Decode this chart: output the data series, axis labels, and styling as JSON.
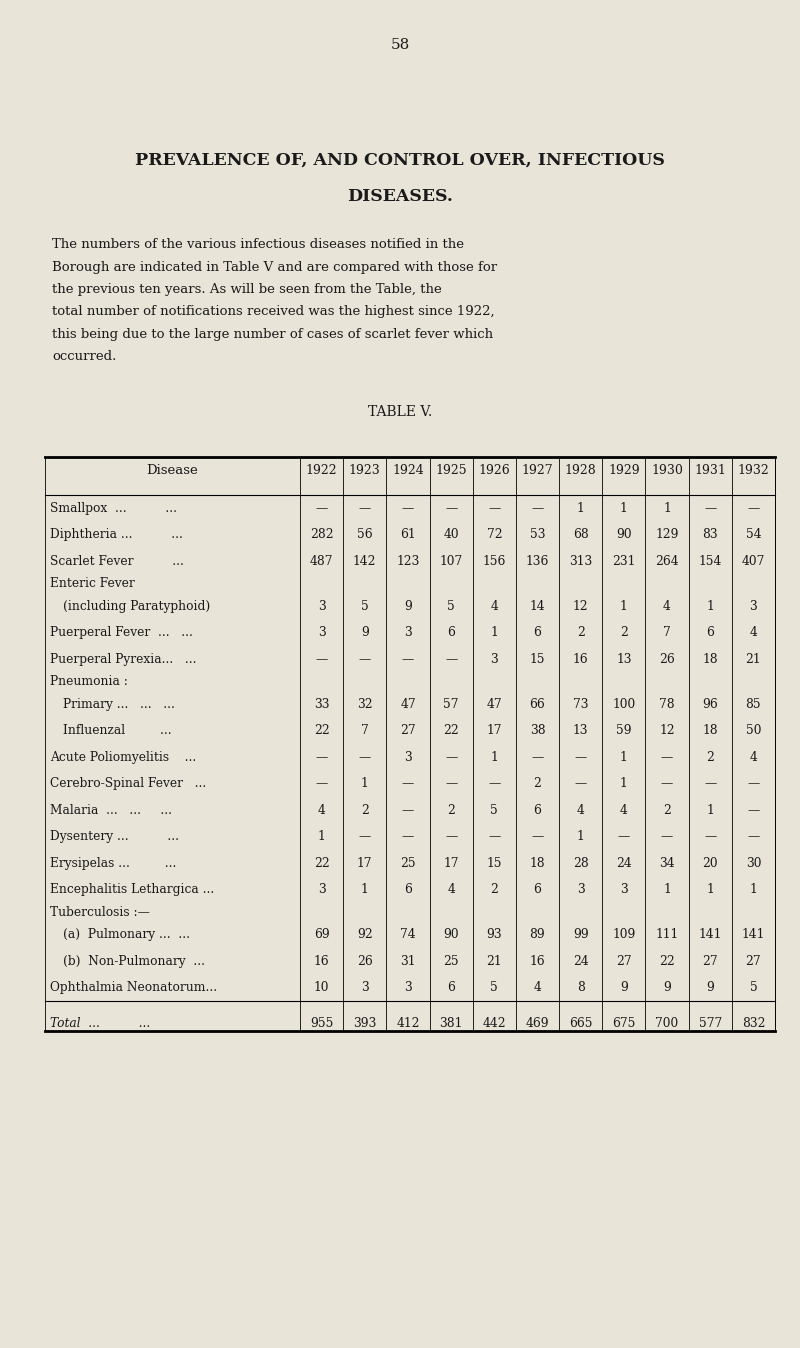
{
  "page_number": "58",
  "title_line1": "PREVALENCE OF, AND CONTROL OVER, INFECTIOUS",
  "title_line2": "DISEASES.",
  "paragraph": "The numbers of the various infectious diseases notified in the Borough are indicated in Table V and are compared with those for the previous ten years. As will be seen from the Table, the total number of notifications received was the highest since 1922, this being due to the large number of cases of scarlet fever which occurred.",
  "table_title": "TABLE V.",
  "background_color": "#e8e4d8",
  "text_color": "#1a1a1a",
  "years": [
    "1922",
    "1923",
    "1924",
    "1925",
    "1926",
    "1927",
    "1928",
    "1929",
    "1930",
    "1931",
    "1932"
  ],
  "diseases": [
    {
      "name": "Smallpox  ...          ...",
      "indent": 0,
      "values": [
        "—",
        "—",
        "—",
        "—",
        "—",
        "—",
        "1",
        "1",
        "1",
        "—",
        "—"
      ]
    },
    {
      "name": "Diphtheria ...          ...",
      "indent": 0,
      "values": [
        "282",
        "56",
        "61",
        "40",
        "72",
        "53",
        "68",
        "90",
        "129",
        "83",
        "54"
      ]
    },
    {
      "name": "Scarlet Fever          ...",
      "indent": 0,
      "values": [
        "487",
        "142",
        "123",
        "107",
        "156",
        "136",
        "313",
        "231",
        "264",
        "154",
        "407"
      ]
    },
    {
      "name": "Enteric Fever",
      "indent": 0,
      "values": [
        "",
        "",
        "",
        "",
        "",
        "",
        "",
        "",
        "",
        "",
        ""
      ]
    },
    {
      "name": "    (including Paratyphoid)",
      "indent": 1,
      "values": [
        "3",
        "5",
        "9",
        "5",
        "4",
        "14",
        "12",
        "1",
        "4",
        "1",
        "3"
      ]
    },
    {
      "name": "Puerperal Fever  ...   ...",
      "indent": 0,
      "values": [
        "3",
        "9",
        "3",
        "6",
        "1",
        "6",
        "2",
        "2",
        "7",
        "6",
        "4"
      ]
    },
    {
      "name": "Puerperal Pyrexia...   ...",
      "indent": 0,
      "values": [
        "—",
        "—",
        "—",
        "—",
        "3",
        "15",
        "16",
        "13",
        "26",
        "18",
        "21"
      ]
    },
    {
      "name": "Pneumonia :",
      "indent": 0,
      "values": [
        "",
        "",
        "",
        "",
        "",
        "",
        "",
        "",
        "",
        "",
        ""
      ]
    },
    {
      "name": "    Primary ...   ...   ...",
      "indent": 1,
      "values": [
        "33",
        "32",
        "47",
        "57",
        "47",
        "66",
        "73",
        "100",
        "78",
        "96",
        "85"
      ]
    },
    {
      "name": "    Influenzal         ...",
      "indent": 1,
      "values": [
        "22",
        "7",
        "27",
        "22",
        "17",
        "38",
        "13",
        "59",
        "12",
        "18",
        "50"
      ]
    },
    {
      "name": "Acute Poliomyelitis    ...",
      "indent": 0,
      "values": [
        "—",
        "—",
        "3",
        "—",
        "1",
        "—",
        "—",
        "1",
        "—",
        "2",
        "4"
      ]
    },
    {
      "name": "Cerebro-Spinal Fever   ...",
      "indent": 0,
      "values": [
        "—",
        "1",
        "—",
        "—",
        "—",
        "2",
        "—",
        "1",
        "—",
        "—",
        "—"
      ]
    },
    {
      "name": "Malaria  ...   ...     ...",
      "indent": 0,
      "values": [
        "4",
        "2",
        "—",
        "2",
        "5",
        "6",
        "4",
        "4",
        "2",
        "1",
        "—"
      ]
    },
    {
      "name": "Dysentery ...          ...",
      "indent": 0,
      "values": [
        "1",
        "—",
        "—",
        "—",
        "—",
        "—",
        "1",
        "—",
        "—",
        "—",
        "—"
      ]
    },
    {
      "name": "Erysipelas ...         ...",
      "indent": 0,
      "values": [
        "22",
        "17",
        "25",
        "17",
        "15",
        "18",
        "28",
        "24",
        "34",
        "20",
        "30"
      ]
    },
    {
      "name": "Encephalitis Lethargica ...",
      "indent": 0,
      "values": [
        "3",
        "1",
        "6",
        "4",
        "2",
        "6",
        "3",
        "3",
        "1",
        "1",
        "1"
      ]
    },
    {
      "name": "Tuberculosis :—",
      "indent": 0,
      "values": [
        "",
        "",
        "",
        "",
        "",
        "",
        "",
        "",
        "",
        "",
        ""
      ]
    },
    {
      "name": "    (a)  Pulmonary ...  ...",
      "indent": 1,
      "values": [
        "69",
        "92",
        "74",
        "90",
        "93",
        "89",
        "99",
        "109",
        "111",
        "141",
        "141"
      ]
    },
    {
      "name": "    (b)  Non-Pulmonary  ...",
      "indent": 1,
      "values": [
        "16",
        "26",
        "31",
        "25",
        "21",
        "16",
        "24",
        "27",
        "22",
        "27",
        "27"
      ]
    },
    {
      "name": "Ophthalmia Neonatorum...",
      "indent": 0,
      "values": [
        "10",
        "3",
        "3",
        "6",
        "5",
        "4",
        "8",
        "9",
        "9",
        "9",
        "5"
      ]
    }
  ],
  "total_row": {
    "name": "Total  ...         ...",
    "values": [
      "955",
      "393",
      "412",
      "381",
      "442",
      "469",
      "665",
      "675",
      "700",
      "577",
      "832"
    ]
  }
}
